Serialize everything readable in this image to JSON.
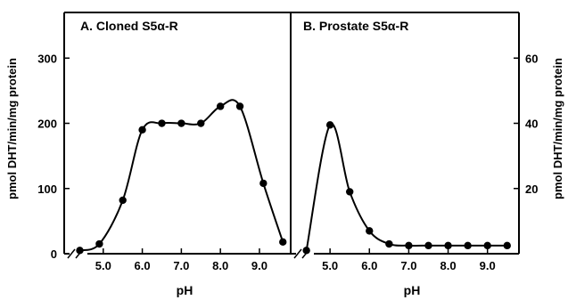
{
  "chart_data": [
    {
      "type": "line",
      "title": "A. Cloned S5α-R",
      "xlabel": "pH",
      "ylabel": "pmol DHT/min/mg protein",
      "x_ticks": [
        "5.0",
        "6.0",
        "7.0",
        "8.0",
        "9.0"
      ],
      "y_ticks": [
        "0",
        "100",
        "200",
        "300"
      ],
      "xlim": [
        4.0,
        9.8
      ],
      "ylim": [
        0,
        370
      ],
      "grid": false,
      "series": [
        {
          "x": [
            4.4,
            4.9,
            5.5,
            6.0,
            6.5,
            7.0,
            7.5,
            8.0,
            8.5,
            9.1,
            9.6
          ],
          "values": [
            5,
            15,
            82,
            190,
            200,
            200,
            200,
            226,
            226,
            108,
            18
          ]
        }
      ]
    },
    {
      "type": "line",
      "title": "B. Prostate S5α-R",
      "xlabel": "pH",
      "ylabel": "pmol DHT/min/mg protein",
      "x_ticks": [
        "5.0",
        "6.0",
        "7.0",
        "8.0",
        "9.0"
      ],
      "y_ticks": [
        "20",
        "40",
        "60"
      ],
      "xlim": [
        4.0,
        9.8
      ],
      "ylim": [
        0,
        74
      ],
      "grid": false,
      "series": [
        {
          "x": [
            4.4,
            5.0,
            5.5,
            6.0,
            6.5,
            7.0,
            7.5,
            8.0,
            8.5,
            9.0,
            9.5
          ],
          "values": [
            1,
            39.5,
            19,
            7,
            3,
            2.5,
            2.5,
            2.5,
            2.5,
            2.5,
            2.5
          ]
        }
      ]
    }
  ]
}
